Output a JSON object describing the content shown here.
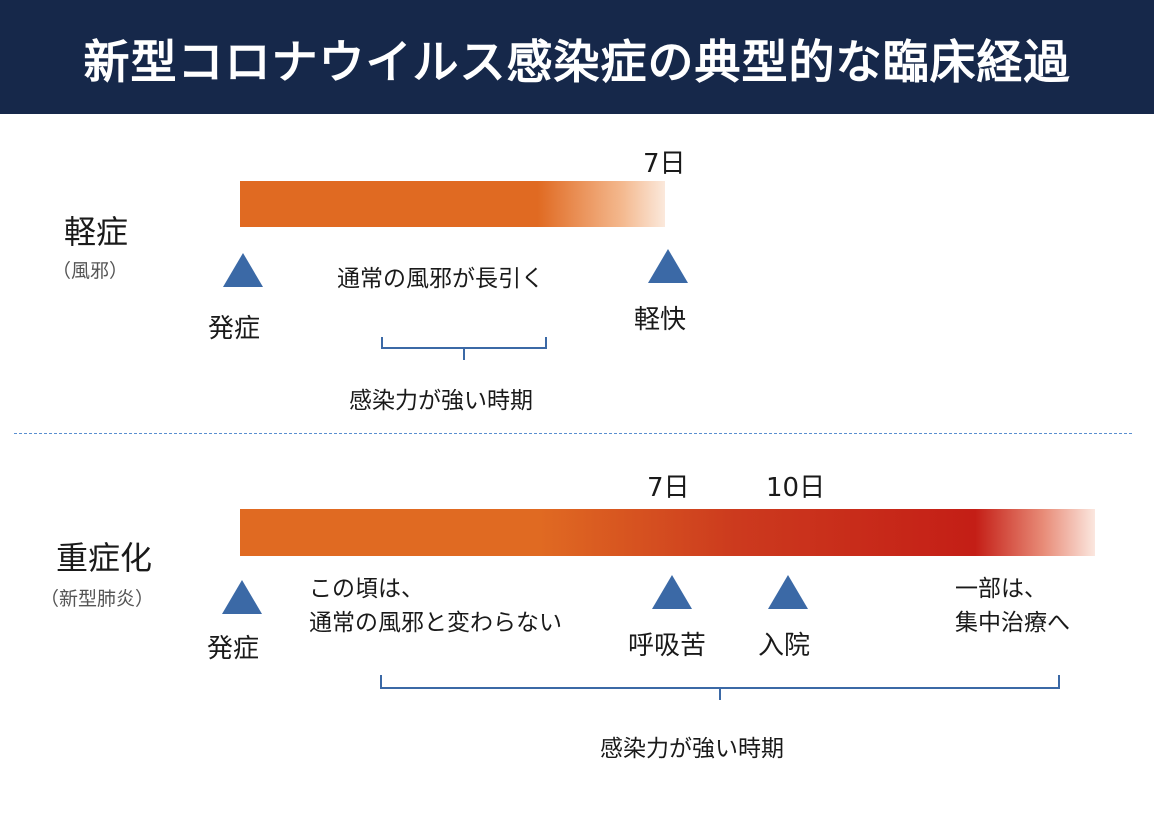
{
  "title": "新型コロナウイルス感染症の典型的な臨床経過",
  "mild": {
    "category": "軽症",
    "category_sub": "（風邪）",
    "day_label": "7日",
    "onset": "発症",
    "recovery": "軽快",
    "description": "通常の風邪が長引く",
    "infectious_period": "感染力が強い時期"
  },
  "severe": {
    "category": "重症化",
    "category_sub": "（新型肺炎）",
    "day7_label": "7日",
    "day10_label": "10日",
    "onset": "発症",
    "description_line1": "この頃は、",
    "description_line2": "通常の風邪と変わらない",
    "breathing": "呼吸苦",
    "hospital": "入院",
    "end_line1": "一部は、",
    "end_line2": "集中治療へ",
    "infectious_period": "感染力が強い時期"
  },
  "colors": {
    "header_bg": "#16284a",
    "bar_orange": "#e06a22",
    "bar_red": "#c41e16",
    "marker": "#3b69a6",
    "divider": "#5a8fd0"
  }
}
